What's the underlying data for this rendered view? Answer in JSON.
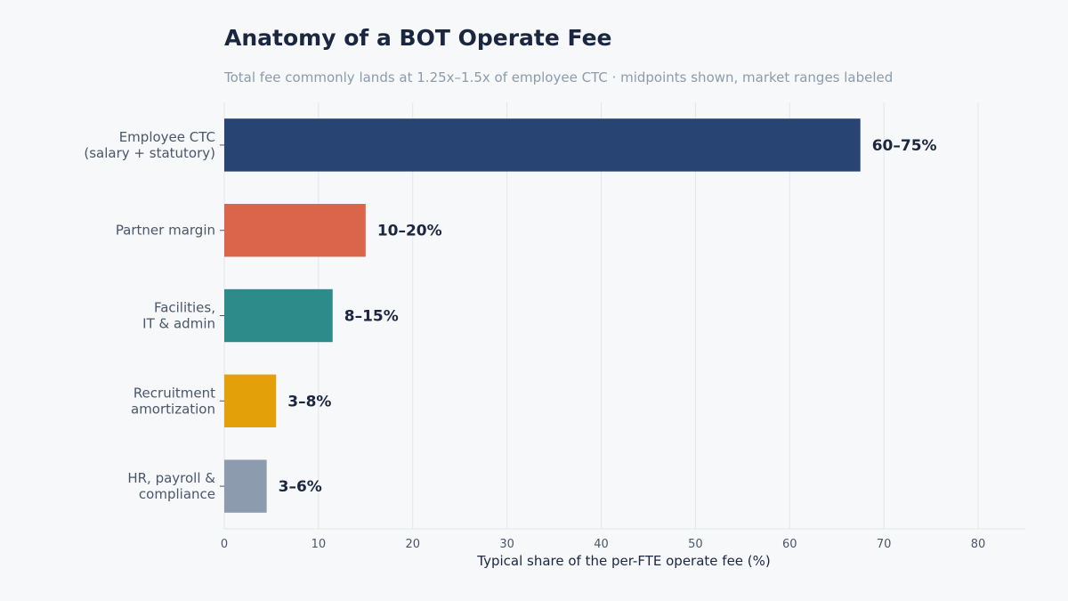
{
  "chart_data": {
    "type": "bar",
    "orientation": "horizontal",
    "title": "Anatomy of a BOT Operate Fee",
    "subtitle": "Total fee commonly lands at 1.25x–1.5x of employee CTC  ·  midpoints shown, market ranges labeled",
    "xlabel": "Typical share of the per-FTE operate fee (%)",
    "ylabel": "",
    "xlim": [
      0,
      85
    ],
    "xticks": [
      0,
      10,
      20,
      30,
      40,
      50,
      60,
      70,
      80
    ],
    "grid": true,
    "categories": [
      [
        "Employee CTC",
        "(salary + statutory)"
      ],
      [
        "Partner margin"
      ],
      [
        "Facilities,",
        "IT & admin"
      ],
      [
        "Recruitment",
        "amortization"
      ],
      [
        "HR, payroll &",
        "compliance"
      ]
    ],
    "values": [
      67.5,
      15,
      11.5,
      5.5,
      4.5
    ],
    "value_labels": [
      "60–75%",
      "10–20%",
      "8–15%",
      "3–8%",
      "3–6%"
    ],
    "colors": [
      "#274472",
      "#db654a",
      "#2d8b8a",
      "#e3a008",
      "#8d9bae"
    ]
  }
}
